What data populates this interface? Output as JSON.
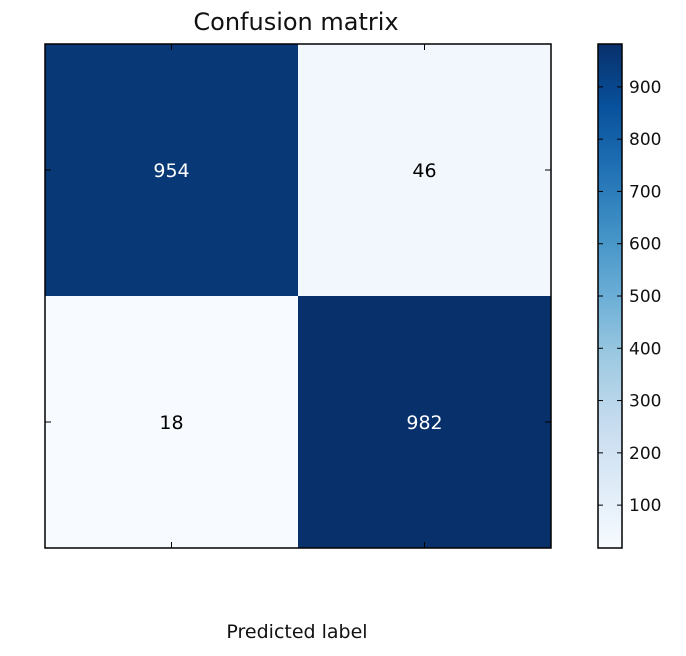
{
  "chart_data": {
    "type": "heatmap",
    "title": "Confusion matrix",
    "xlabel": "Predicted label",
    "ylabel": "",
    "matrix": [
      [
        954,
        46
      ],
      [
        18,
        982
      ]
    ],
    "colormap": "Blues",
    "colorbar": {
      "min": 18,
      "max": 982,
      "ticks": [
        100,
        200,
        300,
        400,
        500,
        600,
        700,
        800,
        900
      ]
    },
    "text_colors": {
      "dark_cell": "#ffffff",
      "light_cell": "#000000"
    },
    "grid": false
  }
}
